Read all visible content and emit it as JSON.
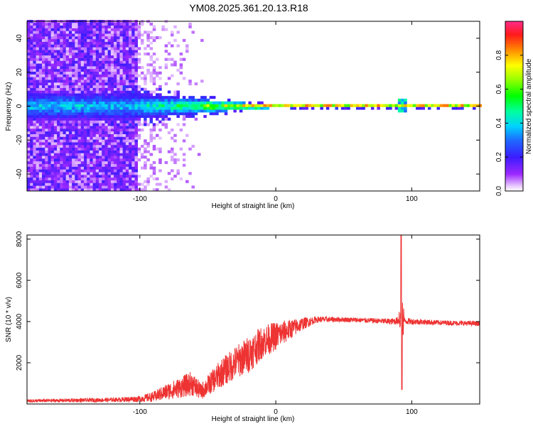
{
  "title": "YM08.2025.361.20.13.R18",
  "colors": {
    "snr_line": "#ee3333",
    "background": "#ffffff",
    "axis": "#000000"
  },
  "chart_data": [
    {
      "type": "heatmap",
      "xlabel": "Height of straight line (km)",
      "ylabel": "Frequency (Hz)",
      "xlim": [
        -183,
        150
      ],
      "ylim": [
        -50,
        50
      ],
      "x_ticks": [
        -100,
        0,
        100
      ],
      "x_tick_labels": [
        "-100",
        "0",
        "100"
      ],
      "y_ticks": [
        -40,
        -20,
        0,
        20,
        40
      ],
      "y_tick_labels": [
        "-40",
        "-20",
        "0",
        "20",
        "40"
      ],
      "colorbar": {
        "label": "Normalized spectral amplitude",
        "range": [
          0,
          1
        ],
        "ticks": [
          0,
          0.2,
          0.4,
          0.6,
          0.8
        ],
        "tick_labels": [
          "0.0",
          "0.2",
          "0.4",
          "0.6",
          "0.8"
        ]
      },
      "features": {
        "noise_region_x": [
          -183,
          -103
        ],
        "noise_fade_end_x": -55,
        "tone_frequency_hz": 0,
        "tone_spread_hz_at_x": [
          [
            -105,
            8
          ],
          [
            -70,
            5
          ],
          [
            -40,
            3
          ],
          [
            -15,
            1.5
          ],
          [
            0,
            1
          ],
          [
            150,
            1
          ]
        ],
        "tone_level_at_x": [
          [
            -105,
            0.4
          ],
          [
            -70,
            0.55
          ],
          [
            -40,
            0.75
          ],
          [
            -15,
            0.9
          ],
          [
            0,
            1.0
          ],
          [
            150,
            1.0
          ]
        ],
        "blip_x": 92
      }
    },
    {
      "type": "line",
      "xlabel": "Height of straight line (km)",
      "ylabel": "SNR (10 * v/v)",
      "xlim": [
        -183,
        150
      ],
      "ylim": [
        0,
        8200
      ],
      "x_ticks": [
        -100,
        0,
        100
      ],
      "x_tick_labels": [
        "-100",
        "0",
        "100"
      ],
      "y_ticks": [
        2000,
        4000,
        6000,
        8000
      ],
      "y_tick_labels": [
        "2000",
        "4000",
        "6000",
        "8000"
      ],
      "series": [
        {
          "color": "#ee3333",
          "envelope": [
            [
              -183,
              150,
              80
            ],
            [
              -120,
              200,
              100
            ],
            [
              -100,
              250,
              150
            ],
            [
              -90,
              350,
              250
            ],
            [
              -80,
              600,
              400
            ],
            [
              -70,
              800,
              500
            ],
            [
              -62,
              1000,
              600
            ],
            [
              -55,
              600,
              400
            ],
            [
              -50,
              900,
              500
            ],
            [
              -40,
              1500,
              700
            ],
            [
              -30,
              2000,
              800
            ],
            [
              -20,
              2400,
              900
            ],
            [
              -10,
              3000,
              800
            ],
            [
              0,
              3300,
              700
            ],
            [
              10,
              3600,
              500
            ],
            [
              20,
              3900,
              300
            ],
            [
              30,
              4100,
              150
            ],
            [
              50,
              4100,
              120
            ],
            [
              70,
              4050,
              120
            ],
            [
              85,
              4000,
              150
            ],
            [
              91,
              4050,
              200
            ],
            [
              100,
              4000,
              150
            ],
            [
              120,
              3950,
              120
            ],
            [
              150,
              3900,
              120
            ]
          ],
          "spike": {
            "x": 92.5,
            "max": 8200,
            "min": 700
          }
        }
      ]
    }
  ]
}
